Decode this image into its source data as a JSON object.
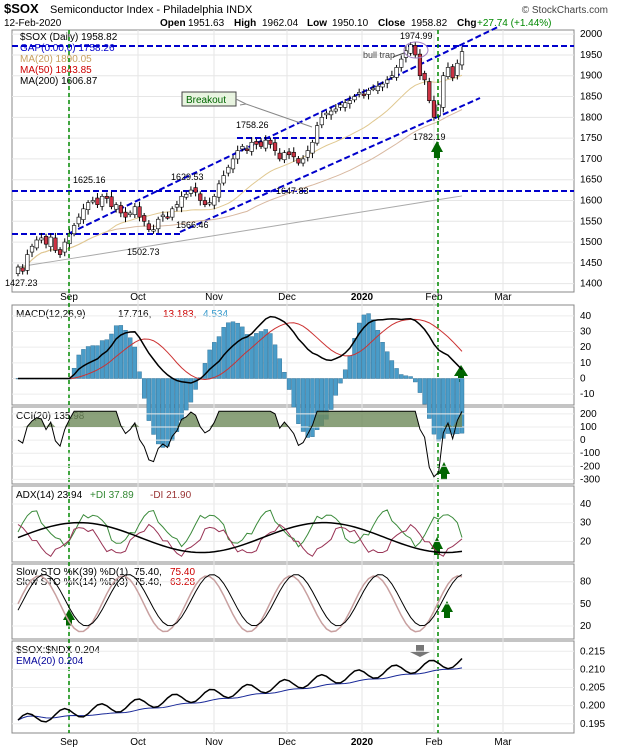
{
  "header": {
    "symbol": "$SOX",
    "name": "Semiconductor Index - Philadelphia  INDX",
    "date": "12-Feb-2020",
    "open_label": "Open",
    "open": "1951.63",
    "high_label": "High",
    "high": "1962.04",
    "low_label": "Low",
    "low": "1950.10",
    "close_label": "Close",
    "close": "1958.82",
    "chg_label": "Chg",
    "chg": "+27.74 (+1.44%)",
    "credit": "© StockCharts.com"
  },
  "price_panel": {
    "legend": [
      {
        "text": "$SOX (Daily) 1958.82",
        "color": "#000000"
      },
      {
        "text": "GAP(0.00,0) 1758.26",
        "color": "#0000cc"
      },
      {
        "text": "MA(20) 1890.05",
        "color": "#c8a060"
      },
      {
        "text": "MA(50) 1843.85",
        "color": "#cc0000"
      },
      {
        "text": "MA(200) 1606.87",
        "color": "#000000"
      }
    ],
    "annotations": {
      "breakout": "Breakout",
      "bull_trap": "bull trap",
      "p1974": "1974.99",
      "p1758": "1758.26",
      "p1629": "1629.53",
      "p1625": "1625.16",
      "p1566": "1566.46",
      "p1502": "1502.73",
      "p1427": "1427.23",
      "p1647": "1647.83",
      "p1782": "1782.19"
    }
  },
  "macd_panel": {
    "label": "MACD(12,26,9)",
    "v1": "17.716,",
    "v2": "13.183,",
    "v3": "4.534",
    "ticks": [
      "40",
      "30",
      "20",
      "10",
      "0",
      "-10"
    ]
  },
  "cci_panel": {
    "label": "CCI(20) 135.98",
    "ticks": [
      "200",
      "100",
      "0",
      "-100",
      "-200",
      "-300"
    ]
  },
  "adx_panel": {
    "label": "ADX(14) 23.94",
    "pdi": "+DI 37.89",
    "mdi": "-DI 21.90",
    "ticks": [
      "40",
      "30",
      "20"
    ]
  },
  "sto_panel": {
    "l1": "Slow STO %K(39) %D(1)",
    "v1": "75.40,",
    "v1b": "75.40",
    "l2": "Slow STO %K(14) %D(3)",
    "v2": "75.40,",
    "v2b": "63.28",
    "ticks": [
      "80",
      "50",
      "20"
    ]
  },
  "ratio_panel": {
    "l1": "$SOX:$NDX 0.204",
    "l2": "EMA(20) 0.204",
    "ticks": [
      "0.215",
      "0.210",
      "0.205",
      "0.200",
      "0.195"
    ]
  },
  "x_labels": [
    "Sep",
    "Oct",
    "Nov",
    "Dec",
    "2020",
    "Feb",
    "Mar"
  ],
  "chart_data": {
    "type": "candlestick",
    "title": "$SOX Semiconductor Index - Philadelphia INDX",
    "y_ticks": [
      "2000",
      "1950",
      "1900",
      "1850",
      "1800",
      "1750",
      "1700",
      "1650",
      "1600",
      "1550",
      "1500",
      "1450",
      "1400"
    ],
    "ylim": [
      1380,
      2010
    ],
    "x_categories": [
      "Sep",
      "Oct",
      "Nov",
      "Dec",
      "2020",
      "Feb",
      "Mar"
    ],
    "key_levels": [
      1974.99,
      1758.26,
      1629.53,
      1625.16,
      1566.46,
      1502.73,
      1427.23,
      1647.83,
      1782.19
    ],
    "grid": true
  }
}
